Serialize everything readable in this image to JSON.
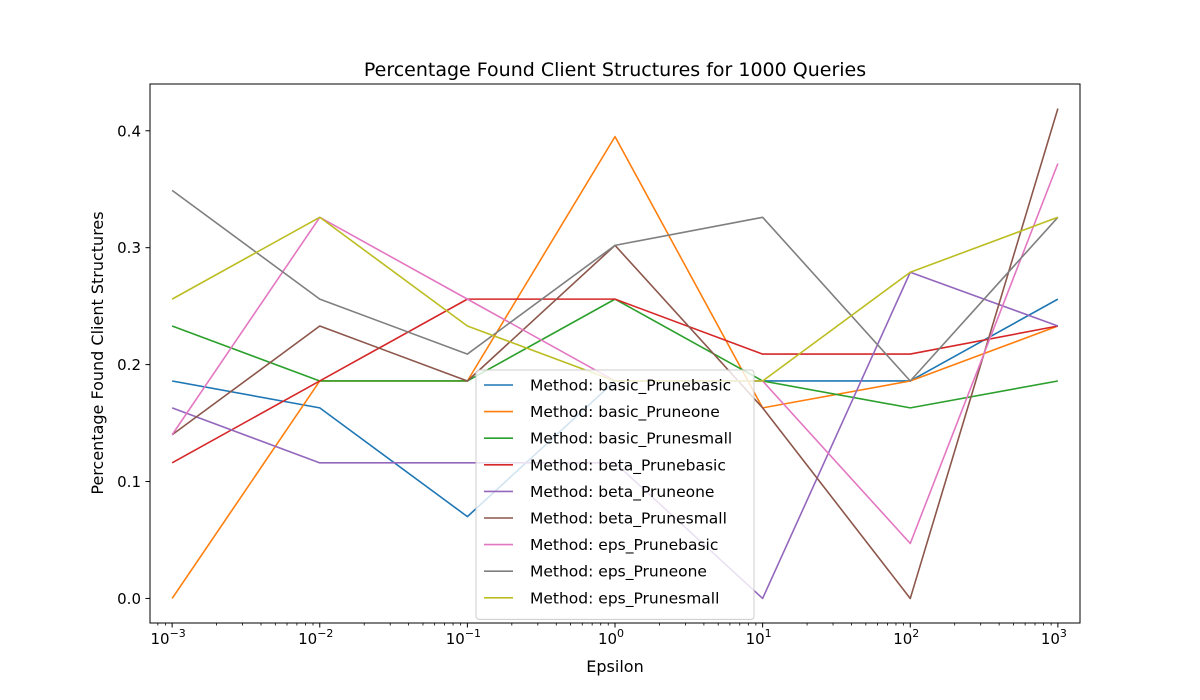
{
  "chart_data": {
    "type": "line",
    "title": "Percentage Found Client Structures for 1000 Queries",
    "xlabel": "Epsilon",
    "ylabel": "Percentage Found Client Structures",
    "x_scale": "log",
    "x": [
      0.001,
      0.01,
      0.1,
      1,
      10,
      100,
      1000
    ],
    "x_ticks": [
      {
        "value": 0.001,
        "exp": "−3"
      },
      {
        "value": 0.01,
        "exp": "−2"
      },
      {
        "value": 0.1,
        "exp": "−1"
      },
      {
        "value": 1,
        "exp": "0"
      },
      {
        "value": 10,
        "exp": "1"
      },
      {
        "value": 100,
        "exp": "2"
      },
      {
        "value": 1000,
        "exp": "3"
      }
    ],
    "tick_base": "10",
    "y_ticks": [
      {
        "value": 0.0,
        "label": "0.0"
      },
      {
        "value": 0.1,
        "label": "0.1"
      },
      {
        "value": 0.2,
        "label": "0.2"
      },
      {
        "value": 0.3,
        "label": "0.3"
      },
      {
        "value": 0.4,
        "label": "0.4"
      }
    ],
    "xlim": [
      0.000708,
      1412
    ],
    "ylim": [
      -0.021,
      0.44
    ],
    "grid": false,
    "legend_position": "center bottom",
    "series": [
      {
        "name": "Method: basic_Prunebasic",
        "color": "#1f77b4",
        "values": [
          0.186,
          0.163,
          0.07,
          0.186,
          0.186,
          0.186,
          0.256
        ]
      },
      {
        "name": "Method: basic_Pruneone",
        "color": "#ff7f0e",
        "values": [
          0.0,
          0.186,
          0.186,
          0.395,
          0.163,
          0.186,
          0.233
        ]
      },
      {
        "name": "Method: basic_Prunesmall",
        "color": "#2ca02c",
        "values": [
          0.233,
          0.186,
          0.186,
          0.256,
          0.186,
          0.163,
          0.186
        ]
      },
      {
        "name": "Method: beta_Prunebasic",
        "color": "#d62728",
        "values": [
          0.116,
          0.186,
          0.256,
          0.256,
          0.209,
          0.209,
          0.233
        ]
      },
      {
        "name": "Method: beta_Pruneone",
        "color": "#9467bd",
        "values": [
          0.163,
          0.116,
          0.116,
          0.116,
          0.0,
          0.279,
          0.233
        ]
      },
      {
        "name": "Method: beta_Prunesmall",
        "color": "#8c564b",
        "values": [
          0.14,
          0.233,
          0.186,
          0.302,
          0.163,
          0.0,
          0.419
        ]
      },
      {
        "name": "Method: eps_Prunebasic",
        "color": "#e377c2",
        "values": [
          0.14,
          0.326,
          0.256,
          0.186,
          0.186,
          0.047,
          0.372
        ]
      },
      {
        "name": "Method: eps_Pruneone",
        "color": "#7f7f7f",
        "values": [
          0.349,
          0.256,
          0.209,
          0.302,
          0.326,
          0.186,
          0.326
        ]
      },
      {
        "name": "Method: eps_Prunesmall",
        "color": "#bcbd22",
        "values": [
          0.256,
          0.326,
          0.233,
          0.186,
          0.186,
          0.279,
          0.326
        ]
      }
    ]
  }
}
